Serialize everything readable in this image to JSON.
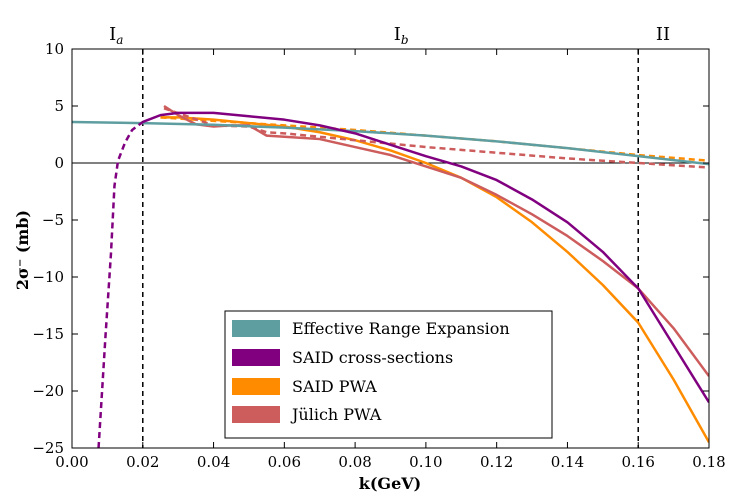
{
  "chart_data": {
    "type": "line",
    "title": "",
    "xlabel": "k(GeV)",
    "ylabel": "2σ⁻ (mb)",
    "xlim": [
      0.0,
      0.18
    ],
    "ylim": [
      -25,
      10
    ],
    "x_ticks": [
      "0.00",
      "0.02",
      "0.04",
      "0.06",
      "0.08",
      "0.10",
      "0.12",
      "0.14",
      "0.16",
      "0.18"
    ],
    "y_ticks": [
      "10",
      "5",
      "0",
      "−5",
      "−10",
      "−15",
      "−20",
      "−25"
    ],
    "x_tick_values": [
      0.0,
      0.02,
      0.04,
      0.06,
      0.08,
      0.1,
      0.12,
      0.14,
      0.16,
      0.18
    ],
    "y_tick_values": [
      10,
      5,
      0,
      -5,
      -10,
      -15,
      -20,
      -25
    ],
    "vlines": [
      0.02,
      0.16
    ],
    "regions": [
      {
        "main": "I",
        "sub": "a",
        "x": 0.0125
      },
      {
        "main": "I",
        "sub": "b",
        "x": 0.093
      },
      {
        "main": "II",
        "sub": "",
        "x": 0.167
      }
    ],
    "legend_position": "lower-center",
    "series": [
      {
        "name": "Effective Range Expansion",
        "color": "#5f9ea0",
        "style": "solid",
        "points": [
          [
            0.0,
            3.6
          ],
          [
            0.02,
            3.5
          ],
          [
            0.04,
            3.35
          ],
          [
            0.06,
            3.1
          ],
          [
            0.08,
            2.8
          ],
          [
            0.1,
            2.4
          ],
          [
            0.12,
            1.9
          ],
          [
            0.14,
            1.3
          ],
          [
            0.16,
            0.6
          ],
          [
            0.18,
            -0.1
          ]
        ]
      },
      {
        "name": "SAID cross-sections",
        "color": "#800080",
        "style": "solid",
        "points": [
          [
            0.02,
            3.6
          ],
          [
            0.025,
            4.2
          ],
          [
            0.03,
            4.4
          ],
          [
            0.04,
            4.4
          ],
          [
            0.05,
            4.1
          ],
          [
            0.06,
            3.8
          ],
          [
            0.07,
            3.3
          ],
          [
            0.08,
            2.6
          ],
          [
            0.09,
            1.6
          ],
          [
            0.1,
            0.6
          ],
          [
            0.11,
            -0.3
          ],
          [
            0.12,
            -1.5
          ],
          [
            0.13,
            -3.2
          ],
          [
            0.14,
            -5.2
          ],
          [
            0.15,
            -7.8
          ],
          [
            0.16,
            -11.0
          ],
          [
            0.17,
            -16.0
          ],
          [
            0.18,
            -21.0
          ]
        ]
      },
      {
        "name": "SAID cross-sections (extrapolated)",
        "color": "#800080",
        "style": "dashed",
        "legend": false,
        "points": [
          [
            0.0075,
            -25
          ],
          [
            0.0095,
            -15
          ],
          [
            0.011,
            -8
          ],
          [
            0.012,
            -2
          ],
          [
            0.013,
            0.2
          ],
          [
            0.015,
            1.8
          ],
          [
            0.017,
            2.9
          ],
          [
            0.02,
            3.6
          ]
        ]
      },
      {
        "name": "SAID PWA",
        "color": "#ff8c00",
        "style": "solid",
        "points": [
          [
            0.025,
            4.0
          ],
          [
            0.03,
            4.0
          ],
          [
            0.04,
            3.8
          ],
          [
            0.05,
            3.5
          ],
          [
            0.06,
            3.2
          ],
          [
            0.07,
            2.7
          ],
          [
            0.08,
            2.0
          ],
          [
            0.09,
            1.1
          ],
          [
            0.1,
            0.0
          ],
          [
            0.11,
            -1.3
          ],
          [
            0.12,
            -3.0
          ],
          [
            0.13,
            -5.2
          ],
          [
            0.14,
            -7.8
          ],
          [
            0.15,
            -10.7
          ],
          [
            0.16,
            -14.0
          ],
          [
            0.17,
            -19.0
          ],
          [
            0.18,
            -24.5
          ]
        ]
      },
      {
        "name": "SAID PWA (dashed)",
        "color": "#ff8c00",
        "style": "dashed",
        "legend": false,
        "points": [
          [
            0.025,
            4.0
          ],
          [
            0.04,
            3.7
          ],
          [
            0.06,
            3.3
          ],
          [
            0.08,
            2.9
          ],
          [
            0.1,
            2.4
          ],
          [
            0.12,
            1.9
          ],
          [
            0.14,
            1.3
          ],
          [
            0.16,
            0.7
          ],
          [
            0.18,
            0.2
          ]
        ]
      },
      {
        "name": "Jülich PWA",
        "color": "#cd5c5c",
        "style": "solid",
        "points": [
          [
            0.026,
            5.0
          ],
          [
            0.03,
            4.2
          ],
          [
            0.035,
            3.4
          ],
          [
            0.04,
            3.2
          ],
          [
            0.045,
            3.3
          ],
          [
            0.05,
            3.3
          ],
          [
            0.055,
            2.4
          ],
          [
            0.06,
            2.3
          ],
          [
            0.07,
            2.1
          ],
          [
            0.08,
            1.4
          ],
          [
            0.09,
            0.7
          ],
          [
            0.1,
            -0.3
          ],
          [
            0.11,
            -1.3
          ],
          [
            0.12,
            -2.8
          ],
          [
            0.13,
            -4.5
          ],
          [
            0.14,
            -6.4
          ],
          [
            0.15,
            -8.6
          ],
          [
            0.16,
            -11.0
          ],
          [
            0.17,
            -14.5
          ],
          [
            0.18,
            -18.7
          ]
        ]
      },
      {
        "name": "Jülich PWA (dashed)",
        "color": "#cd5c5c",
        "style": "dashed",
        "legend": false,
        "points": [
          [
            0.026,
            4.8
          ],
          [
            0.04,
            3.3
          ],
          [
            0.05,
            3.2
          ],
          [
            0.055,
            2.7
          ],
          [
            0.06,
            2.6
          ],
          [
            0.08,
            2.0
          ],
          [
            0.1,
            1.4
          ],
          [
            0.12,
            0.9
          ],
          [
            0.14,
            0.4
          ],
          [
            0.16,
            0.0
          ],
          [
            0.18,
            -0.4
          ]
        ]
      }
    ]
  }
}
